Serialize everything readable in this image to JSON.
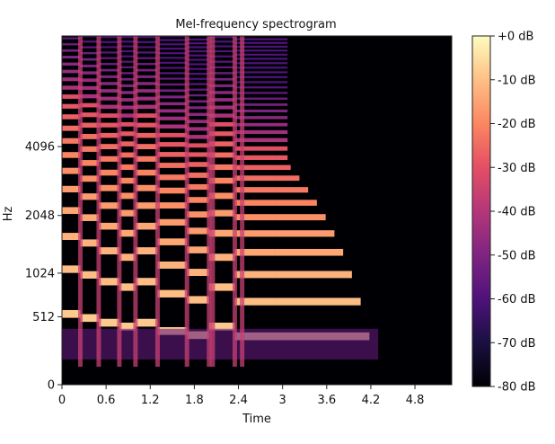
{
  "chart_data": {
    "type": "heatmap",
    "title": "Mel-frequency spectrogram",
    "xlabel": "Time",
    "ylabel": "Hz",
    "x_ticks": [
      "0",
      "0.6",
      "1.2",
      "1.8",
      "2.4",
      "3",
      "3.6",
      "4.2",
      "4.8"
    ],
    "x_tick_values": [
      0,
      0.6,
      1.2,
      1.8,
      2.4,
      3.0,
      3.6,
      4.2,
      4.8
    ],
    "xlim": [
      0,
      5.3
    ],
    "y_ticks": [
      "0",
      "512",
      "1024",
      "2048",
      "4096"
    ],
    "y_tick_values": [
      0,
      512,
      1024,
      2048,
      4096
    ],
    "y_scale": "mel",
    "ylim": [
      0,
      11025
    ],
    "colorbar": {
      "label_ticks": [
        "+0 dB",
        "-10 dB",
        "-20 dB",
        "-30 dB",
        "-40 dB",
        "-50 dB",
        "-60 dB",
        "-70 dB",
        "-80 dB"
      ],
      "values": [
        0,
        -10,
        -20,
        -30,
        -40,
        -50,
        -60,
        -70,
        -80
      ],
      "colormap": "magma",
      "range": [
        -80,
        0
      ]
    },
    "notes": [
      {
        "description": "harmonic note",
        "t_start": 0.0,
        "t_end": 0.25,
        "f0": 540
      },
      {
        "description": "harmonic note",
        "t_start": 0.25,
        "t_end": 0.5,
        "f0": 500
      },
      {
        "description": "harmonic note",
        "t_start": 0.5,
        "t_end": 0.78,
        "f0": 455
      },
      {
        "description": "harmonic note",
        "t_start": 0.78,
        "t_end": 1.0,
        "f0": 420
      },
      {
        "description": "harmonic note",
        "t_start": 1.0,
        "t_end": 1.3,
        "f0": 455
      },
      {
        "description": "harmonic note",
        "t_start": 1.3,
        "t_end": 1.7,
        "f0": 380
      },
      {
        "description": "harmonic note",
        "t_start": 1.7,
        "t_end": 2.0,
        "f0": 345
      },
      {
        "description": "harmonic note",
        "t_start": 2.0,
        "t_end": 2.35,
        "f0": 420
      },
      {
        "description": "harmonic note",
        "t_start": 2.35,
        "t_end": 2.9,
        "f0": 335
      },
      {
        "description": "decaying note",
        "t_start": 2.9,
        "t_end": 4.3,
        "f0": 335
      }
    ],
    "onsets": [
      0.25,
      0.5,
      0.78,
      1.0,
      1.3,
      1.7,
      2.0,
      2.05,
      2.35,
      2.45
    ]
  }
}
